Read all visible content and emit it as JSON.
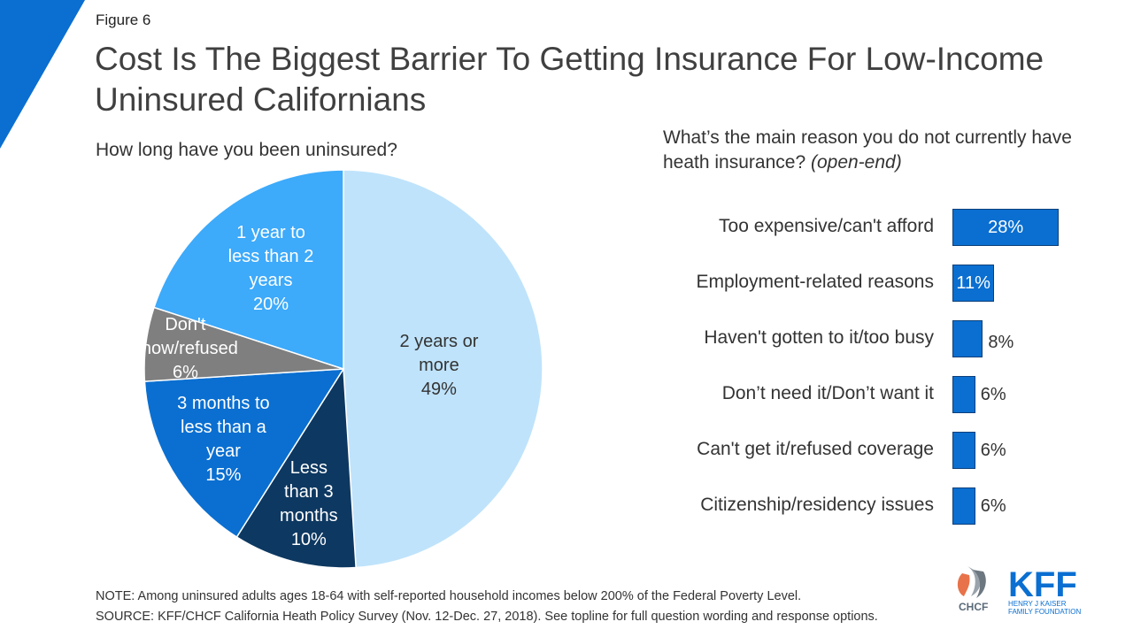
{
  "figure_label": "Figure 6",
  "title": "Cost Is The Biggest Barrier To Getting Insurance For Low-Income Uninsured Californians",
  "chart_data": [
    {
      "type": "pie",
      "title": "How long have you been uninsured?",
      "slices": [
        {
          "label_lines": [
            "2 years or",
            "more"
          ],
          "value": 49,
          "value_label": "49%",
          "color": "#bfe3fb",
          "text_color": "#333333"
        },
        {
          "label_lines": [
            "Less",
            "than 3",
            "months"
          ],
          "value": 10,
          "value_label": "10%",
          "color": "#0d3861",
          "text_color": "#ffffff"
        },
        {
          "label_lines": [
            "3 months to",
            "less than a",
            "year"
          ],
          "value": 15,
          "value_label": "15%",
          "color": "#0a6fd1",
          "text_color": "#ffffff"
        },
        {
          "label_lines": [
            "Don't",
            "know/refused"
          ],
          "value": 6,
          "value_label": "6%",
          "color": "#7f7f7f",
          "text_color": "#ffffff"
        },
        {
          "label_lines": [
            "1 year to",
            "less than 2",
            "years"
          ],
          "value": 20,
          "value_label": "20%",
          "color": "#3daafa",
          "text_color": "#ffffff"
        }
      ]
    },
    {
      "type": "bar",
      "orientation": "horizontal",
      "title": "What’s the main reason you do not currently have heath insurance?",
      "title_note": "(open-end)",
      "categories": [
        "Too expensive/can't afford",
        "Employment-related reasons",
        "Haven't gotten to it/too busy",
        "Don’t need it/Don’t want it",
        "Can't get it/refused coverage",
        "Citizenship/residency issues"
      ],
      "values": [
        28,
        11,
        8,
        6,
        6,
        6
      ],
      "value_labels": [
        "28%",
        "11%",
        "8%",
        "6%",
        "6%",
        "6%"
      ],
      "color": "#0a6fd1"
    }
  ],
  "footnotes": {
    "note": "NOTE: Among uninsured adults ages 18-64 with self-reported household incomes below 200% of the Federal Poverty Level.",
    "source": "SOURCE: KFF/CHCF California Heath Policy Survey (Nov. 12-Dec. 27, 2018). See topline for full question wording and response options."
  },
  "logos": {
    "chcf": "CHCF",
    "kff": "KFF",
    "kff_sub_1": "HENRY J KAISER",
    "kff_sub_2": "FAMILY FOUNDATION"
  },
  "colors": {
    "accent": "#0a6fd1",
    "dark": "#0d3861",
    "light": "#bfe3fb",
    "mid": "#3daafa",
    "gray": "#7f7f7f"
  }
}
